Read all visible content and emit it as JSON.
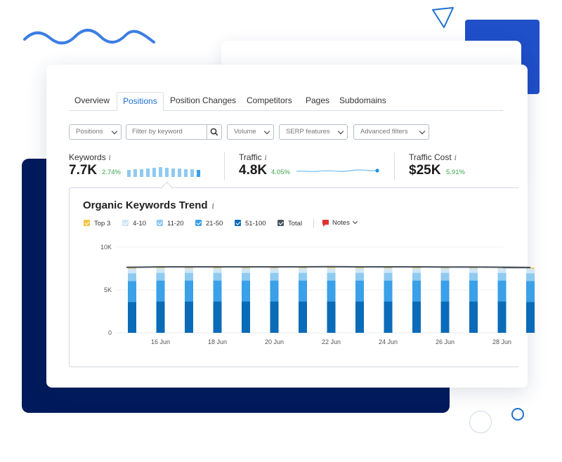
{
  "tabs": [
    {
      "label": "Overview",
      "active": false
    },
    {
      "label": "Positions",
      "active": true
    },
    {
      "label": "Position Changes",
      "active": false
    },
    {
      "label": "Competitors",
      "active": false
    },
    {
      "label": "Pages",
      "active": false
    },
    {
      "label": "Subdomains",
      "active": false
    }
  ],
  "filters": {
    "positions_label": "Positions",
    "keyword_placeholder": "Filter by keyword",
    "volume_label": "Volume",
    "serp_label": "SERP features",
    "advanced_label": "Advanced filters"
  },
  "metrics": {
    "keywords": {
      "label": "Keywords",
      "info": "i",
      "value": "7.7K",
      "delta": "2.74%"
    },
    "traffic": {
      "label": "Traffic",
      "info": "i",
      "value": "4.8K",
      "delta": "4.05%"
    },
    "traffic_cost": {
      "label": "Traffic Cost",
      "info": "i",
      "value": "$25K",
      "delta": "5.91%"
    }
  },
  "chart_panel": {
    "title": "Organic Keywords Trend",
    "info": "i",
    "legend": [
      {
        "label": "Top 3",
        "color": "#f4c542"
      },
      {
        "label": "4-10",
        "color": "#cfe6f7"
      },
      {
        "label": "11-20",
        "color": "#8fcaf1"
      },
      {
        "label": "21-50",
        "color": "#3aa0e8"
      },
      {
        "label": "51-100",
        "color": "#0a6bb8"
      },
      {
        "label": "Total",
        "color": "#4a5560"
      }
    ],
    "notes_label": "Notes"
  },
  "colors": {
    "accent": "#1e6fd1",
    "positive": "#3aa84a",
    "navy": "#001a5c",
    "royal_blue": "#1f4fc9"
  },
  "chart_data": {
    "type": "bar",
    "stacked": true,
    "title": "Organic Keywords Trend",
    "x_tick_labels": [
      "16 Jun",
      "18 Jun",
      "20 Jun",
      "22 Jun",
      "24 Jun",
      "26 Jun",
      "28 Jun"
    ],
    "y_tick_labels": [
      "0",
      "5K",
      "10K"
    ],
    "ylim": [
      0,
      10000
    ],
    "grid": true,
    "categories": [
      "15 Jun",
      "16 Jun",
      "17 Jun",
      "18 Jun",
      "19 Jun",
      "20 Jun",
      "21 Jun",
      "22 Jun",
      "23 Jun",
      "24 Jun",
      "25 Jun",
      "26 Jun",
      "27 Jun",
      "28 Jun",
      "29 Jun"
    ],
    "series": [
      {
        "name": "51-100",
        "color": "#0a6bb8",
        "values": [
          3600,
          3650,
          3650,
          3650,
          3650,
          3650,
          3650,
          3650,
          3650,
          3650,
          3650,
          3650,
          3650,
          3650,
          3600
        ]
      },
      {
        "name": "21-50",
        "color": "#3aa0e8",
        "values": [
          2450,
          2450,
          2450,
          2450,
          2450,
          2450,
          2450,
          2450,
          2450,
          2450,
          2450,
          2450,
          2450,
          2450,
          2450
        ]
      },
      {
        "name": "11-20",
        "color": "#8fcaf1",
        "values": [
          900,
          900,
          900,
          900,
          900,
          900,
          900,
          900,
          900,
          900,
          900,
          900,
          900,
          900,
          900
        ]
      },
      {
        "name": "4-10",
        "color": "#cfe6f7",
        "values": [
          550,
          550,
          550,
          550,
          550,
          550,
          550,
          550,
          550,
          550,
          550,
          550,
          550,
          550,
          550
        ]
      },
      {
        "name": "Top 3",
        "color": "#f4c542",
        "values": [
          120,
          120,
          120,
          120,
          120,
          120,
          120,
          120,
          120,
          120,
          120,
          120,
          120,
          120,
          120
        ]
      }
    ],
    "total": {
      "name": "Total",
      "color": "#4a5560",
      "values": [
        7650,
        7700,
        7700,
        7700,
        7700,
        7700,
        7700,
        7720,
        7700,
        7700,
        7700,
        7680,
        7680,
        7660,
        7620
      ]
    }
  }
}
